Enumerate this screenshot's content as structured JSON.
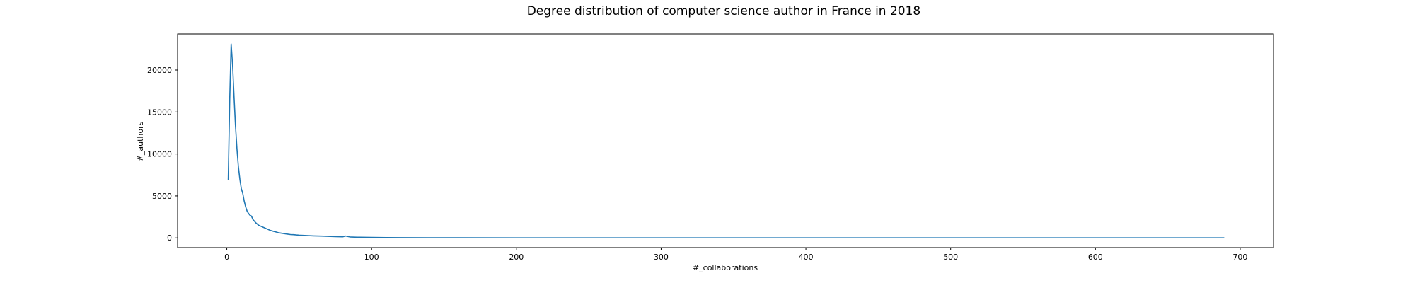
{
  "chart_data": {
    "type": "line",
    "title": "Degree distribution of computer science author in France in 2018",
    "xlabel": "#_collaborations",
    "ylabel": "#_authors",
    "xlim": [
      -34,
      723
    ],
    "ylim": [
      -1160,
      24300
    ],
    "xticks": [
      0,
      100,
      200,
      300,
      400,
      500,
      600,
      700
    ],
    "yticks": [
      0,
      5000,
      10000,
      15000,
      20000
    ],
    "grid": false,
    "legend": "none",
    "color": "#1f77b4",
    "series": [
      {
        "x": [
          1,
          2,
          3,
          4,
          5,
          6,
          7,
          8,
          9,
          10,
          11,
          12,
          13,
          14,
          15,
          16,
          17,
          18,
          19,
          20,
          22,
          24,
          26,
          28,
          30,
          32,
          34,
          36,
          38,
          40,
          42,
          44,
          46,
          48,
          50,
          55,
          60,
          65,
          70,
          75,
          80,
          82,
          85,
          90,
          100,
          110,
          120,
          140,
          160,
          200,
          300,
          400,
          500,
          600,
          689
        ],
        "y": [
          6900,
          16500,
          23100,
          20500,
          16800,
          13400,
          10600,
          8500,
          7000,
          5900,
          5300,
          4400,
          3700,
          3200,
          2900,
          2700,
          2600,
          2200,
          2000,
          1800,
          1500,
          1350,
          1200,
          1050,
          900,
          800,
          700,
          600,
          550,
          500,
          450,
          400,
          380,
          350,
          320,
          280,
          240,
          210,
          180,
          150,
          130,
          220,
          110,
          80,
          60,
          40,
          30,
          20,
          10,
          5,
          2,
          1,
          1,
          1,
          1
        ]
      }
    ]
  }
}
